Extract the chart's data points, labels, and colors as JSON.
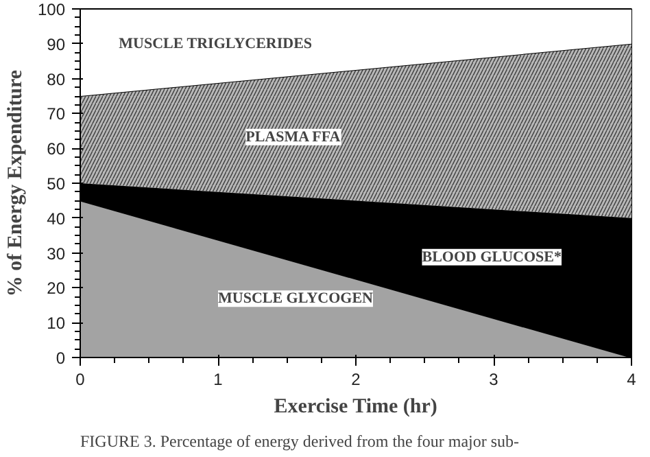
{
  "chart_data": {
    "type": "area",
    "stacked": true,
    "x": [
      0,
      4
    ],
    "series": [
      {
        "name": "MUSCLE GLYCOGEN",
        "color": "#a3a3a3",
        "values": [
          45,
          0
        ]
      },
      {
        "name": "BLOOD GLUCOSE*",
        "color": "#000000",
        "values": [
          5,
          40
        ]
      },
      {
        "name": "PLASMA FFA",
        "color": "#b8b8b8",
        "values": [
          25,
          50
        ]
      },
      {
        "name": "MUSCLE TRIGLYCERIDES",
        "color": "#ffffff",
        "values": [
          25,
          10
        ]
      }
    ],
    "xlabel": "Exercise Time (hr)",
    "ylabel": "% of Energy Expenditure",
    "xlim": [
      0,
      4
    ],
    "xticks": [
      0,
      1,
      2,
      3,
      4
    ],
    "ylim": [
      0,
      100
    ],
    "yticks": [
      0,
      10,
      20,
      30,
      40,
      50,
      60,
      70,
      80,
      90,
      100
    ],
    "annotations": [
      "FIGURE 3. Percentage of energy derived from the four major sub-"
    ]
  }
}
